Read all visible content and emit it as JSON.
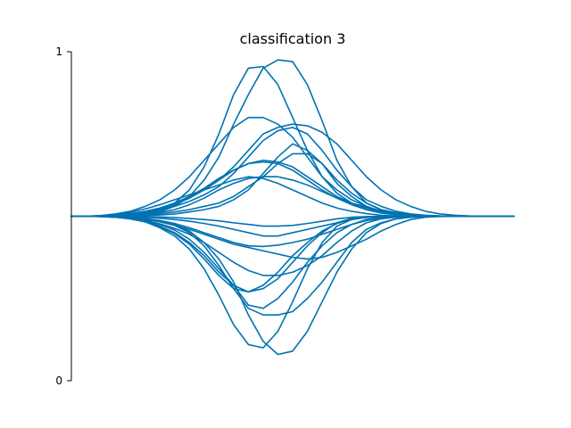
{
  "chart_data": {
    "type": "line",
    "title": "classification 3",
    "xlabel": "",
    "ylabel": "",
    "ylim": [
      0,
      1
    ],
    "y_ticks": [
      "0",
      "1"
    ],
    "x_ticks_shown": false,
    "grid": false,
    "line_color": "#0072B2",
    "x": [
      0,
      1,
      2,
      3,
      4,
      5,
      6,
      7,
      8,
      9,
      10,
      11,
      12,
      13,
      14,
      15,
      16,
      17,
      18,
      19,
      20,
      21,
      22,
      23,
      24,
      25,
      26,
      27,
      28,
      29,
      30
    ],
    "series": [
      {
        "values": [
          0.5,
          0.5,
          0.501,
          0.502,
          0.504,
          0.51,
          0.52,
          0.54,
          0.58,
          0.65,
          0.75,
          0.87,
          0.95,
          0.955,
          0.9,
          0.8,
          0.7,
          0.62,
          0.57,
          0.54,
          0.52,
          0.51,
          0.505,
          0.502,
          0.501,
          0.5,
          0.5,
          0.5,
          0.5,
          0.5,
          0.5
        ]
      },
      {
        "values": [
          0.5,
          0.5,
          0.5,
          0.501,
          0.503,
          0.507,
          0.514,
          0.53,
          0.56,
          0.61,
          0.68,
          0.78,
          0.87,
          0.95,
          0.975,
          0.97,
          0.9,
          0.79,
          0.67,
          0.59,
          0.54,
          0.52,
          0.51,
          0.505,
          0.502,
          0.501,
          0.5,
          0.5,
          0.5,
          0.5,
          0.5
        ]
      },
      {
        "values": [
          0.5,
          0.5,
          0.502,
          0.507,
          0.515,
          0.53,
          0.55,
          0.58,
          0.62,
          0.67,
          0.72,
          0.77,
          0.8,
          0.8,
          0.78,
          0.74,
          0.68,
          0.62,
          0.58,
          0.55,
          0.53,
          0.515,
          0.507,
          0.503,
          0.501,
          0.5,
          0.5,
          0.5,
          0.5,
          0.5,
          0.5
        ]
      },
      {
        "values": [
          0.5,
          0.5,
          0.501,
          0.502,
          0.505,
          0.51,
          0.518,
          0.53,
          0.545,
          0.565,
          0.59,
          0.63,
          0.68,
          0.73,
          0.76,
          0.77,
          0.75,
          0.7,
          0.64,
          0.59,
          0.55,
          0.53,
          0.515,
          0.507,
          0.503,
          0.501,
          0.5,
          0.5,
          0.5,
          0.5,
          0.5
        ]
      },
      {
        "values": [
          0.5,
          0.5,
          0.501,
          0.503,
          0.507,
          0.513,
          0.523,
          0.537,
          0.555,
          0.58,
          0.61,
          0.65,
          0.7,
          0.75,
          0.77,
          0.78,
          0.775,
          0.755,
          0.72,
          0.67,
          0.62,
          0.58,
          0.55,
          0.53,
          0.515,
          0.507,
          0.503,
          0.501,
          0.5,
          0.5,
          0.5
        ]
      },
      {
        "values": [
          0.5,
          0.5,
          0.502,
          0.505,
          0.512,
          0.522,
          0.535,
          0.55,
          0.565,
          0.58,
          0.595,
          0.61,
          0.62,
          0.615,
          0.6,
          0.58,
          0.56,
          0.54,
          0.525,
          0.515,
          0.508,
          0.503,
          0.501,
          0.5,
          0.5,
          0.5,
          0.5,
          0.5,
          0.5,
          0.5,
          0.5
        ]
      },
      {
        "values": [
          0.5,
          0.5,
          0.501,
          0.504,
          0.508,
          0.515,
          0.525,
          0.54,
          0.56,
          0.585,
          0.615,
          0.64,
          0.66,
          0.665,
          0.66,
          0.64,
          0.61,
          0.58,
          0.555,
          0.535,
          0.52,
          0.51,
          0.505,
          0.502,
          0.5,
          0.5,
          0.5,
          0.5,
          0.5,
          0.5,
          0.5
        ]
      },
      {
        "values": [
          0.5,
          0.5,
          0.501,
          0.503,
          0.506,
          0.512,
          0.52,
          0.535,
          0.555,
          0.58,
          0.61,
          0.64,
          0.66,
          0.67,
          0.665,
          0.65,
          0.62,
          0.59,
          0.56,
          0.54,
          0.525,
          0.512,
          0.505,
          0.502,
          0.5,
          0.5,
          0.5,
          0.5,
          0.5,
          0.5,
          0.5
        ]
      },
      {
        "values": [
          0.5,
          0.5,
          0.501,
          0.502,
          0.504,
          0.507,
          0.512,
          0.52,
          0.535,
          0.555,
          0.58,
          0.6,
          0.615,
          0.62,
          0.62,
          0.61,
          0.595,
          0.575,
          0.555,
          0.54,
          0.528,
          0.517,
          0.508,
          0.503,
          0.501,
          0.5,
          0.5,
          0.5,
          0.5,
          0.5,
          0.5
        ]
      },
      {
        "values": [
          0.5,
          0.5,
          0.5,
          0.5,
          0.501,
          0.502,
          0.504,
          0.507,
          0.513,
          0.52,
          0.53,
          0.55,
          0.58,
          0.63,
          0.68,
          0.72,
          0.7,
          0.66,
          0.6,
          0.56,
          0.53,
          0.515,
          0.507,
          0.503,
          0.501,
          0.5,
          0.5,
          0.5,
          0.5,
          0.5,
          0.5
        ]
      },
      {
        "values": [
          0.5,
          0.5,
          0.5,
          0.501,
          0.502,
          0.505,
          0.508,
          0.513,
          0.52,
          0.53,
          0.54,
          0.56,
          0.59,
          0.62,
          0.66,
          0.69,
          0.69,
          0.66,
          0.61,
          0.57,
          0.54,
          0.52,
          0.51,
          0.504,
          0.502,
          0.5,
          0.5,
          0.5,
          0.5,
          0.5,
          0.5
        ]
      },
      {
        "values": [
          0.5,
          0.5,
          0.5,
          0.5,
          0.5,
          0.499,
          0.498,
          0.496,
          0.493,
          0.49,
          0.486,
          0.48,
          0.475,
          0.47,
          0.47,
          0.472,
          0.478,
          0.485,
          0.492,
          0.497,
          0.499,
          0.5,
          0.5,
          0.5,
          0.5,
          0.5,
          0.5,
          0.5,
          0.5,
          0.5,
          0.5
        ]
      },
      {
        "values": [
          0.5,
          0.5,
          0.5,
          0.5,
          0.499,
          0.497,
          0.494,
          0.49,
          0.485,
          0.478,
          0.47,
          0.46,
          0.45,
          0.44,
          0.44,
          0.45,
          0.46,
          0.47,
          0.48,
          0.49,
          0.496,
          0.499,
          0.5,
          0.5,
          0.5,
          0.5,
          0.5,
          0.5,
          0.5,
          0.5,
          0.5
        ]
      },
      {
        "values": [
          0.5,
          0.5,
          0.5,
          0.499,
          0.497,
          0.493,
          0.487,
          0.478,
          0.465,
          0.45,
          0.435,
          0.42,
          0.41,
          0.408,
          0.412,
          0.42,
          0.43,
          0.445,
          0.46,
          0.475,
          0.487,
          0.494,
          0.498,
          0.5,
          0.5,
          0.5,
          0.5,
          0.5,
          0.5,
          0.5,
          0.5
        ]
      },
      {
        "values": [
          0.5,
          0.5,
          0.5,
          0.499,
          0.497,
          0.492,
          0.485,
          0.474,
          0.46,
          0.445,
          0.43,
          0.415,
          0.405,
          0.395,
          0.385,
          0.375,
          0.37,
          0.375,
          0.39,
          0.41,
          0.43,
          0.455,
          0.475,
          0.49,
          0.497,
          0.499,
          0.5,
          0.5,
          0.5,
          0.5,
          0.5
        ]
      },
      {
        "values": [
          0.5,
          0.5,
          0.499,
          0.498,
          0.494,
          0.487,
          0.477,
          0.463,
          0.445,
          0.42,
          0.39,
          0.36,
          0.335,
          0.32,
          0.32,
          0.33,
          0.35,
          0.38,
          0.42,
          0.455,
          0.48,
          0.492,
          0.497,
          0.499,
          0.5,
          0.5,
          0.5,
          0.5,
          0.5,
          0.5,
          0.5
        ]
      },
      {
        "values": [
          0.5,
          0.5,
          0.499,
          0.497,
          0.493,
          0.485,
          0.47,
          0.45,
          0.42,
          0.38,
          0.33,
          0.29,
          0.27,
          0.28,
          0.31,
          0.36,
          0.41,
          0.45,
          0.48,
          0.494,
          0.498,
          0.5,
          0.5,
          0.5,
          0.5,
          0.5,
          0.5,
          0.5,
          0.5,
          0.5,
          0.5
        ]
      },
      {
        "values": [
          0.5,
          0.5,
          0.499,
          0.497,
          0.492,
          0.483,
          0.468,
          0.447,
          0.415,
          0.37,
          0.32,
          0.28,
          0.27,
          0.29,
          0.33,
          0.38,
          0.42,
          0.455,
          0.478,
          0.492,
          0.498,
          0.5,
          0.5,
          0.5,
          0.5,
          0.5,
          0.5,
          0.5,
          0.5,
          0.5,
          0.5
        ]
      },
      {
        "values": [
          0.5,
          0.5,
          0.499,
          0.497,
          0.493,
          0.486,
          0.475,
          0.458,
          0.43,
          0.39,
          0.34,
          0.29,
          0.23,
          0.22,
          0.25,
          0.3,
          0.36,
          0.41,
          0.45,
          0.475,
          0.49,
          0.497,
          0.5,
          0.5,
          0.5,
          0.5,
          0.5,
          0.5,
          0.5,
          0.5,
          0.5
        ]
      },
      {
        "values": [
          0.5,
          0.5,
          0.499,
          0.498,
          0.495,
          0.49,
          0.483,
          0.472,
          0.45,
          0.41,
          0.35,
          0.28,
          0.22,
          0.2,
          0.2,
          0.21,
          0.25,
          0.3,
          0.36,
          0.42,
          0.46,
          0.48,
          0.492,
          0.497,
          0.499,
          0.5,
          0.5,
          0.5,
          0.5,
          0.5,
          0.5
        ]
      },
      {
        "values": [
          0.5,
          0.5,
          0.499,
          0.497,
          0.492,
          0.483,
          0.465,
          0.44,
          0.4,
          0.34,
          0.26,
          0.17,
          0.11,
          0.1,
          0.15,
          0.24,
          0.34,
          0.42,
          0.47,
          0.49,
          0.497,
          0.5,
          0.5,
          0.5,
          0.5,
          0.5,
          0.5,
          0.5,
          0.5,
          0.5,
          0.5
        ]
      },
      {
        "values": [
          0.5,
          0.5,
          0.5,
          0.499,
          0.497,
          0.493,
          0.486,
          0.475,
          0.455,
          0.42,
          0.37,
          0.3,
          0.2,
          0.12,
          0.08,
          0.09,
          0.15,
          0.24,
          0.33,
          0.4,
          0.45,
          0.478,
          0.492,
          0.497,
          0.499,
          0.5,
          0.5,
          0.5,
          0.5,
          0.5,
          0.5
        ]
      }
    ]
  }
}
